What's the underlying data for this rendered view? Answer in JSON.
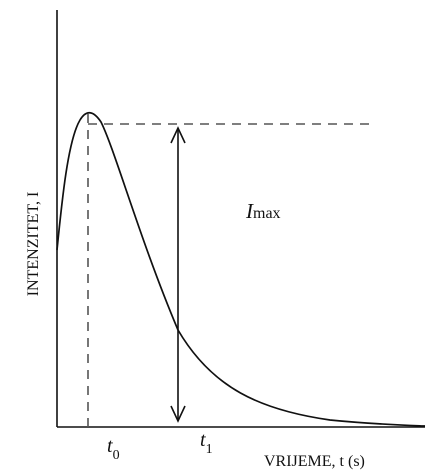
{
  "diagram": {
    "y_axis_label": "INTENZITET, I",
    "x_axis_label": "VRIJEME, t (s)",
    "ticks": [
      {
        "main": "t",
        "sub": "0"
      },
      {
        "main": "t",
        "sub": "1"
      }
    ],
    "peak_label": {
      "main": "I",
      "sub": "max"
    },
    "colors": {
      "stroke": "#111111",
      "dashed": "#555555",
      "background": "#ffffff"
    }
  }
}
